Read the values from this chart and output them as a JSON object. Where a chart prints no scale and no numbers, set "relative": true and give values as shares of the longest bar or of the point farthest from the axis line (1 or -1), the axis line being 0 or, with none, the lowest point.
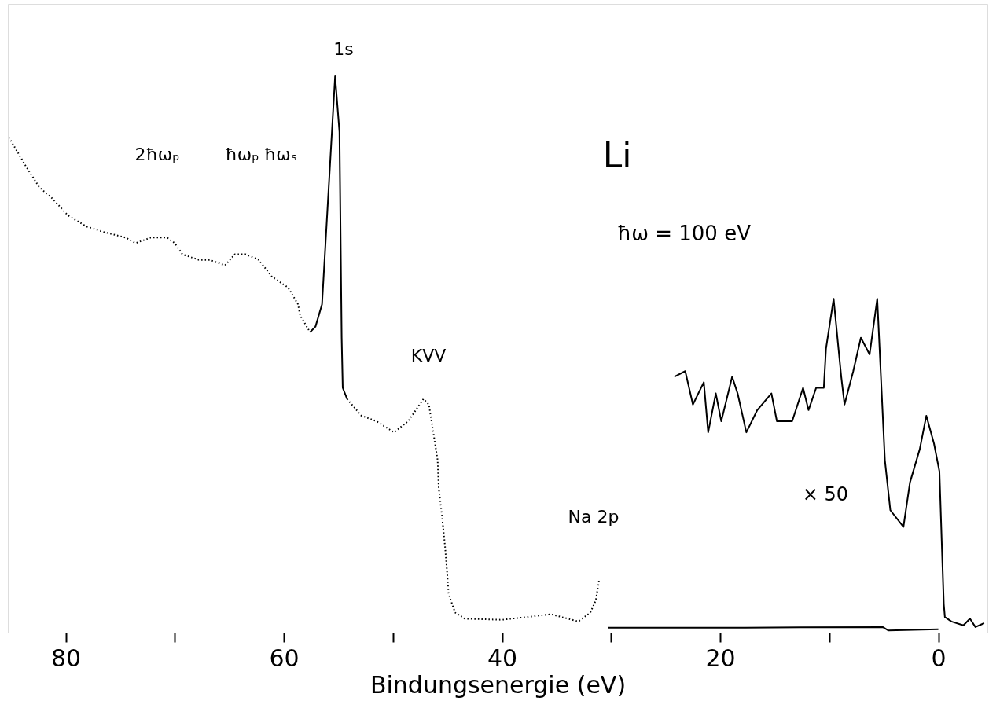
{
  "chart_data": {
    "type": "line",
    "relative": true,
    "xlabel": "Bindungsenergie (eV)",
    "xlim": [
      85.3,
      -4.5
    ],
    "xticks": [
      80,
      {
        "value": 70,
        "label": null
      },
      60,
      {
        "value": 50,
        "label": null
      },
      40,
      {
        "value": 30,
        "label": null
      },
      20,
      {
        "value": 10,
        "label": null
      },
      0
    ],
    "grid": false,
    "series": [
      {
        "color": "#000000",
        "line_style": "dotted",
        "x": [
          85.2,
          83.7,
          82.4,
          81.2,
          79.8,
          78.1,
          76.5,
          74.5,
          73.6,
          72.2,
          70.7,
          70.0,
          69.3,
          67.8,
          66.8,
          65.4,
          64.5,
          63.5,
          62.3,
          61.1,
          59.6,
          58.7,
          58.5,
          57.6,
          55.3,
          54.2,
          52.9,
          51.5,
          49.9,
          48.6,
          47.2,
          46.7,
          46.3,
          45.9,
          45.8,
          45.5,
          45.2,
          45.0,
          44.9,
          44.3,
          43.4,
          40.0,
          35.5,
          33.0,
          31.9,
          31.4,
          31.1
        ],
        "values": [
          0.89,
          0.84,
          0.8,
          0.78,
          0.75,
          0.73,
          0.72,
          0.71,
          0.7,
          0.71,
          0.71,
          0.7,
          0.68,
          0.67,
          0.67,
          0.66,
          0.68,
          0.68,
          0.67,
          0.64,
          0.62,
          0.59,
          0.57,
          0.54,
          null,
          0.42,
          0.39,
          0.38,
          0.36,
          0.38,
          0.42,
          0.41,
          0.36,
          0.31,
          0.26,
          0.21,
          0.15,
          0.1,
          0.07,
          0.036,
          0.025,
          0.023,
          0.033,
          0.02,
          0.036,
          0.058,
          0.094
        ]
      },
      {
        "color": "#000000",
        "line_style": "solid",
        "x": [
          57.6,
          57.1,
          56.5,
          55.3,
          54.9,
          54.7,
          54.6,
          54.2
        ],
        "values": [
          0.54,
          0.55,
          0.59,
          1.0,
          0.9,
          0.53,
          0.44,
          0.42
        ]
      },
      {
        "color": "#000000",
        "line_style": "solid",
        "x": [
          30.3,
          17.7,
          5.1,
          4.6,
          0.0
        ],
        "values": [
          0.009,
          0.009,
          0.01,
          0.004,
          0.006
        ]
      },
      {
        "color": "#000000",
        "line_style": "solid",
        "x": [
          24.2,
          23.2,
          22.5,
          21.5,
          21.1,
          20.4,
          19.9,
          18.9,
          18.4,
          17.6,
          16.6,
          15.3,
          14.8,
          13.4,
          12.4,
          11.9,
          11.2,
          10.5,
          10.3,
          9.6,
          8.9,
          8.6,
          7.8,
          7.1,
          6.3,
          5.6,
          4.9,
          4.4,
          3.2,
          2.6,
          1.7,
          1.1,
          0.4,
          -0.1,
          -0.5,
          -0.6,
          -1.2,
          -2.3,
          -2.9,
          -3.4,
          -4.2
        ],
        "values": [
          0.46,
          0.47,
          0.41,
          0.45,
          0.36,
          0.43,
          0.38,
          0.46,
          0.43,
          0.36,
          0.4,
          0.43,
          0.38,
          0.38,
          0.44,
          0.4,
          0.44,
          0.44,
          0.51,
          0.6,
          0.46,
          0.41,
          0.47,
          0.53,
          0.5,
          0.6,
          0.31,
          0.22,
          0.19,
          0.27,
          0.33,
          0.39,
          0.34,
          0.29,
          0.051,
          0.028,
          0.02,
          0.013,
          0.025,
          0.01,
          0.017
        ]
      }
    ],
    "annotations": [
      "1s",
      "2ħωₚ",
      "ħωₚ",
      "ħωₛ",
      "KVV",
      "Na 2p",
      "Li",
      "ħω = 100 eV",
      "× 50"
    ]
  }
}
